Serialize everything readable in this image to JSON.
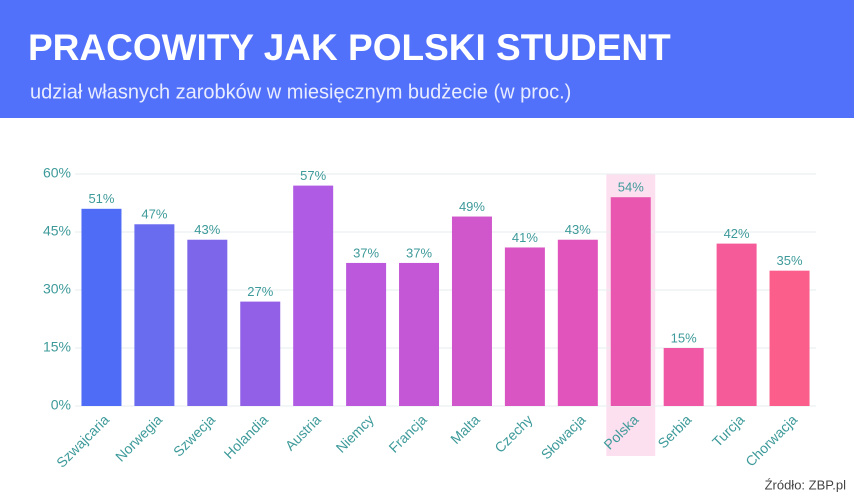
{
  "chart_data": {
    "type": "bar",
    "title": "PRACOWITY JAK POLSKI STUDENT",
    "subtitle": "udział własnych zarobków w miesięcznym budżecie (w proc.)",
    "source": "Źródło: ZBP.pl",
    "categories": [
      "Szwajcaria",
      "Norwegia",
      "Szwecja",
      "Holandia",
      "Austria",
      "Niemcy",
      "Francja",
      "Malta",
      "Czechy",
      "Słowacja",
      "Polska",
      "Serbia",
      "Turcja",
      "Chorwacja"
    ],
    "values": [
      51,
      47,
      43,
      27,
      57,
      37,
      37,
      49,
      41,
      43,
      54,
      15,
      42,
      35
    ],
    "value_labels": [
      "51%",
      "47%",
      "43%",
      "27%",
      "57%",
      "37%",
      "37%",
      "49%",
      "41%",
      "43%",
      "54%",
      "15%",
      "42%",
      "35%"
    ],
    "colors": [
      "#4f6cf7",
      "#6a6cf0",
      "#7e66ea",
      "#9160e6",
      "#b05be3",
      "#bb58dc",
      "#c457d6",
      "#d056cc",
      "#d955c4",
      "#e054bb",
      "#e956b0",
      "#f058a5",
      "#f55b98",
      "#fb5e8a"
    ],
    "highlight": "Polska",
    "ylim": [
      0,
      60
    ],
    "yticks": [
      {
        "value": 0,
        "label": "0%"
      },
      {
        "value": 15,
        "label": "15%"
      },
      {
        "value": 30,
        "label": "30%"
      },
      {
        "value": 45,
        "label": "45%"
      },
      {
        "value": 60,
        "label": "60%"
      }
    ],
    "grid": true
  }
}
